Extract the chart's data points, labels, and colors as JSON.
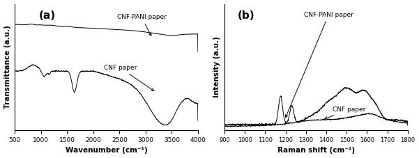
{
  "fig_width": 6.01,
  "fig_height": 2.27,
  "dpi": 100,
  "bg_color": "#ffffff",
  "panel_a": {
    "xlabel": "Wavenumber (cm⁻¹)",
    "ylabel": "Transmittance (a.u.)",
    "xlim": [
      500,
      4000
    ],
    "xticks": [
      500,
      1000,
      1500,
      2000,
      2500,
      3000,
      3500,
      4000
    ],
    "label_a": "(a)",
    "label_cnf_pani": "CNF-PANI paper",
    "label_cnf": "CNF paper"
  },
  "panel_b": {
    "xlabel": "Raman shift (cm⁻¹)",
    "ylabel": "Intensity (a.u.)",
    "xlim": [
      900,
      1800
    ],
    "xticks": [
      900,
      1000,
      1100,
      1200,
      1300,
      1400,
      1500,
      1600,
      1700,
      1800
    ],
    "label_b": "(b)",
    "label_cnf_pani": "CNF-PANI paper",
    "label_cnf": "CNF paper"
  }
}
